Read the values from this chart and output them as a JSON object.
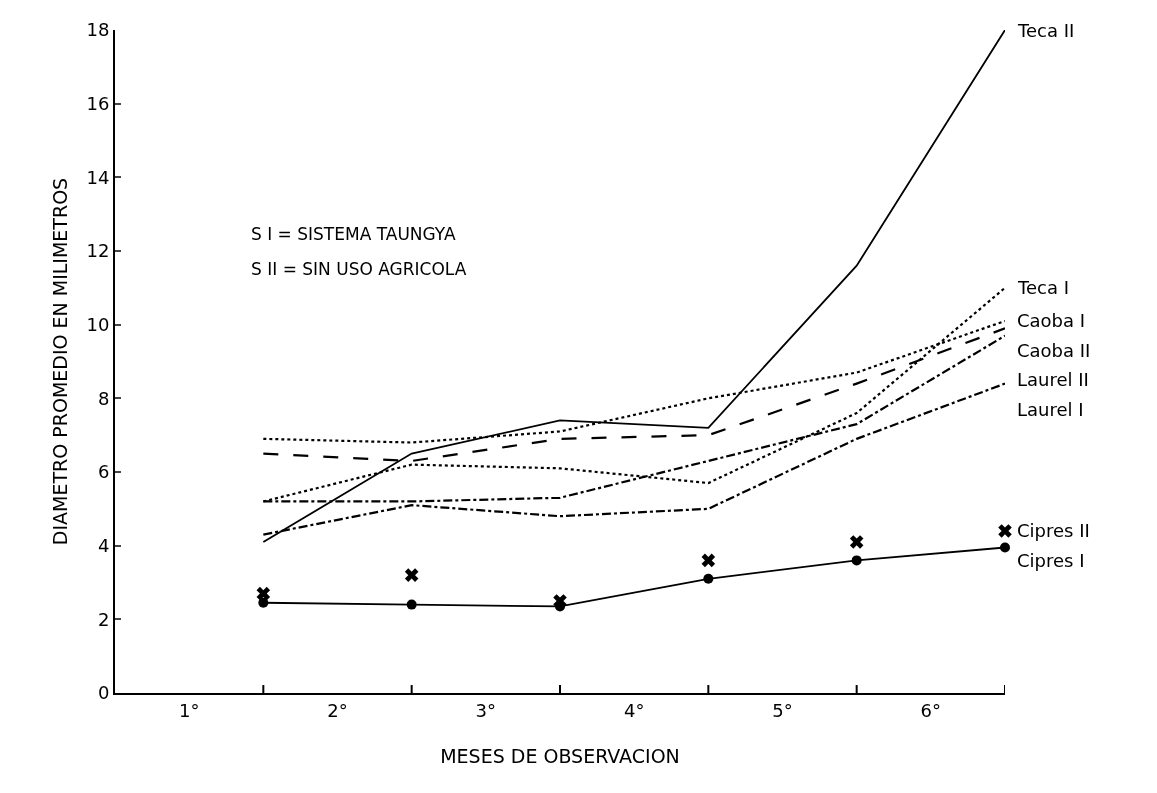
{
  "chart_data": {
    "type": "line",
    "xlabel": "MESES DE OBSERVACION",
    "ylabel": "DIAMETRO PROMEDIO EN MILIMETROS",
    "x": [
      1.5,
      2.5,
      3.5,
      4.5,
      5.5,
      6.5
    ],
    "xlim": [
      0.5,
      6.5
    ],
    "xticks": [
      {
        "value": 1,
        "label": "1°"
      },
      {
        "value": 1.5,
        "label": null
      },
      {
        "value": 2,
        "label": "2°"
      },
      {
        "value": 2.5,
        "label": null
      },
      {
        "value": 3,
        "label": "3°"
      },
      {
        "value": 3.5,
        "label": null
      },
      {
        "value": 4,
        "label": "4°"
      },
      {
        "value": 4.5,
        "label": null
      },
      {
        "value": 5,
        "label": "5°"
      },
      {
        "value": 5.5,
        "label": null
      },
      {
        "value": 6,
        "label": "6°"
      },
      {
        "value": 6.5,
        "label": null
      }
    ],
    "ylim": [
      0,
      18
    ],
    "yticks": [
      0,
      2,
      4,
      6,
      8,
      10,
      12,
      14,
      16,
      18
    ],
    "grid": false,
    "legend": false,
    "series": [
      {
        "name": "Teca II",
        "color": "#000000",
        "line_style": "solid",
        "marker": "none",
        "values": [
          4.1,
          6.5,
          7.4,
          7.2,
          11.6,
          18.0
        ]
      },
      {
        "name": "Teca I",
        "color": "#000000",
        "line_style": "dotted",
        "marker": "none",
        "values": [
          5.2,
          6.2,
          6.1,
          5.7,
          7.6,
          11.0
        ]
      },
      {
        "name": "Caoba II",
        "color": "#000000",
        "line_style": "dashed",
        "marker": "none",
        "values": [
          6.5,
          6.3,
          6.9,
          7.0,
          8.4,
          9.9
        ]
      },
      {
        "name": "Caoba I",
        "color": "#000000",
        "line_style": "dotted",
        "marker": "none",
        "values": [
          6.9,
          6.8,
          7.1,
          8.0,
          8.7,
          10.1
        ]
      },
      {
        "name": "Laurel II",
        "color": "#000000",
        "line_style": "dashdot",
        "marker": "none",
        "values": [
          5.2,
          5.2,
          5.3,
          6.3,
          7.3,
          9.7
        ]
      },
      {
        "name": "Laurel I",
        "color": "#000000",
        "line_style": "dashdot",
        "marker": "none",
        "values": [
          4.3,
          5.1,
          4.8,
          5.0,
          6.9,
          8.4
        ]
      },
      {
        "name": "Cipres II",
        "type": "scatter",
        "color": "#000000",
        "marker": "cross",
        "values": [
          2.7,
          3.2,
          2.5,
          3.6,
          4.1,
          4.4
        ]
      },
      {
        "name": "Cipres I",
        "color": "#000000",
        "line_style": "solid",
        "marker": "circle",
        "values": [
          2.45,
          2.4,
          2.35,
          3.1,
          3.6,
          3.95
        ]
      }
    ],
    "annotations": [
      "S I = SISTEMA TAUNGYA",
      "S II = SIN USO AGRICOLA"
    ]
  }
}
